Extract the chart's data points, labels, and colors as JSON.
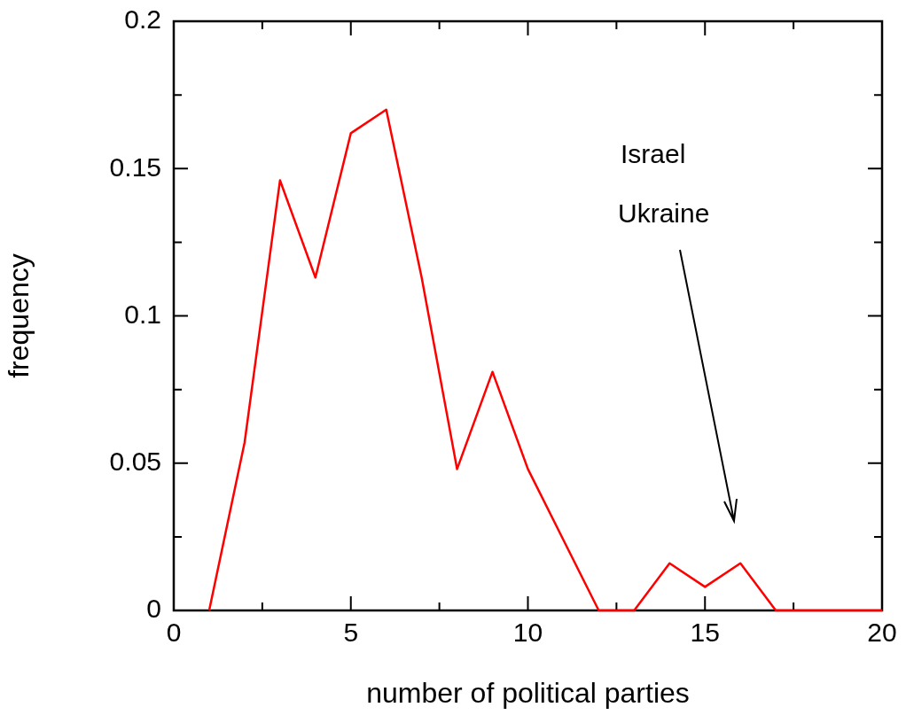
{
  "chart_data": {
    "type": "line",
    "xlabel": "number of political parties",
    "ylabel": "frequency",
    "x": [
      1,
      2,
      3,
      4,
      5,
      6,
      7,
      8,
      9,
      10,
      11,
      12,
      13,
      14,
      15,
      16,
      17,
      18,
      19,
      20
    ],
    "series": [
      {
        "color": "#ff0000",
        "values": [
          0,
          0.057,
          0.146,
          0.113,
          0.162,
          0.17,
          0.113,
          0.048,
          0.081,
          0.048,
          0.024,
          0,
          0,
          0.016,
          0.008,
          0.016,
          0,
          0,
          0,
          0
        ]
      }
    ],
    "xlim": [
      0,
      20
    ],
    "xticks": [
      0,
      {
        "value": 2.5,
        "label": null
      },
      5,
      {
        "value": 7.5,
        "label": null
      },
      10,
      {
        "value": 12.5,
        "label": null
      },
      15,
      {
        "value": 17.5,
        "label": null
      },
      20
    ],
    "ylim": [
      0,
      0.2
    ],
    "yticks": [
      0,
      {
        "value": 0.025,
        "label": null
      },
      0.05,
      {
        "value": 0.075,
        "label": null
      },
      0.1,
      {
        "value": 0.125,
        "label": null
      },
      0.15,
      {
        "value": 0.175,
        "label": null
      },
      0.2
    ],
    "annotations": [
      "Israel",
      "Ukraine"
    ],
    "grid": false,
    "legend": false,
    "marker": "none",
    "line_style": "solid"
  }
}
